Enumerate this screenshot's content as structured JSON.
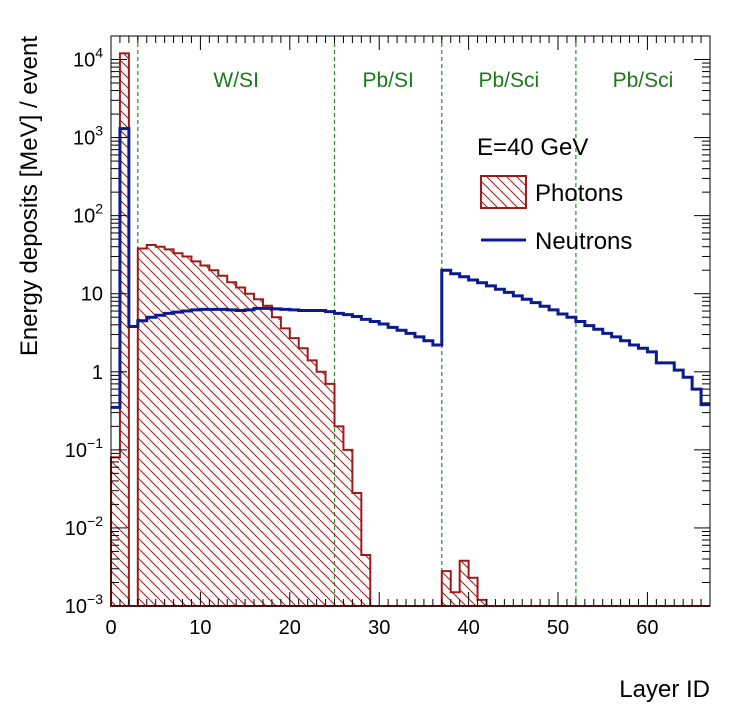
{
  "chart_data": {
    "type": "histogram",
    "xlabel": "Layer ID",
    "ylabel": "Energy deposits [MeV] / event",
    "xlim": [
      0,
      67
    ],
    "ylim": [
      0.001,
      20000
    ],
    "yscale": "log",
    "x_ticks": [
      {
        "value": 0,
        "label": "0"
      },
      {
        "value": 10,
        "label": "10"
      },
      {
        "value": 20,
        "label": "20"
      },
      {
        "value": 30,
        "label": "30"
      },
      {
        "value": 40,
        "label": "40"
      },
      {
        "value": 50,
        "label": "50"
      },
      {
        "value": 60,
        "label": "60"
      }
    ],
    "y_ticks": [
      {
        "value": 0.001,
        "mantissa": "10",
        "exponent": "−3",
        "label": ""
      },
      {
        "value": 0.01,
        "mantissa": "10",
        "exponent": "−2",
        "label": ""
      },
      {
        "value": 0.1,
        "mantissa": "10",
        "exponent": "−1",
        "label": ""
      },
      {
        "value": 1,
        "mantissa": "",
        "exponent": "",
        "label": "1"
      },
      {
        "value": 10,
        "mantissa": "",
        "exponent": "",
        "label": "10"
      },
      {
        "value": 100,
        "mantissa": "10",
        "exponent": "2",
        "label": ""
      },
      {
        "value": 1000,
        "mantissa": "10",
        "exponent": "3",
        "label": ""
      },
      {
        "value": 10000,
        "mantissa": "10",
        "exponent": "4",
        "label": ""
      }
    ],
    "grid": false,
    "regions": [
      {
        "label": "W/SI",
        "x_from": 3,
        "x_to": 25
      },
      {
        "label": "Pb/SI",
        "x_from": 25,
        "x_to": 37
      },
      {
        "label": "Pb/Sci",
        "x_from": 37,
        "x_to": 52
      },
      {
        "label": "Pb/Sci",
        "x_from": 52,
        "x_to": 67
      }
    ],
    "boundaries": [
      3,
      25,
      37,
      52
    ],
    "annotation": "E=40 GeV",
    "bin_edges_start": 0,
    "bin_width": 1,
    "series": [
      {
        "name": "Photons",
        "style": "hatched",
        "color": "#9b1b1b",
        "values": [
          0.08,
          12000,
          0.001,
          38,
          42,
          40,
          37,
          33,
          30,
          26,
          23,
          20,
          17,
          14,
          12,
          10,
          8.5,
          7,
          5,
          3.6,
          2.7,
          2,
          1.4,
          1,
          0.7,
          0.2,
          0.1,
          0.028,
          0.0045,
          0.001,
          0.001,
          0.001,
          0.001,
          0.001,
          0.001,
          0.001,
          0.001,
          0.0028,
          0.0015,
          0.0038,
          0.0023,
          0.0012,
          0.001,
          0.001,
          0.001,
          0.001,
          0.001,
          0.001,
          0.001,
          0.001,
          0.001,
          0.001,
          0.001,
          0.001,
          0.001,
          0.001,
          0.001,
          0.001,
          0.001,
          0.001,
          0.001,
          0.001,
          0.001,
          0.001,
          0.001,
          0.001,
          0.001
        ]
      },
      {
        "name": "Neutrons",
        "style": "line",
        "color": "#0b1a8c",
        "values": [
          0.35,
          1300,
          3.8,
          4.5,
          5,
          5.3,
          5.6,
          5.8,
          6,
          6.2,
          6.3,
          6.3,
          6.3,
          6.2,
          6.1,
          6.2,
          6.5,
          6.5,
          6.4,
          6.3,
          6.2,
          6.1,
          6.1,
          6.1,
          5.9,
          5.6,
          5.4,
          5.1,
          4.7,
          4.4,
          4.1,
          3.7,
          3.4,
          3.1,
          2.8,
          2.5,
          2.2,
          20,
          18,
          16.5,
          15,
          13.8,
          12.6,
          11.4,
          10.4,
          9.4,
          8.5,
          7.7,
          6.9,
          6.2,
          5.5,
          5,
          4.4,
          3.9,
          3.5,
          3.1,
          2.8,
          2.5,
          2.2,
          2,
          1.8,
          1.3,
          1.3,
          1.05,
          0.85,
          0.6,
          0.38
        ]
      }
    ],
    "legend": {
      "position": "top-right",
      "entries": [
        "Photons",
        "Neutrons"
      ]
    }
  }
}
